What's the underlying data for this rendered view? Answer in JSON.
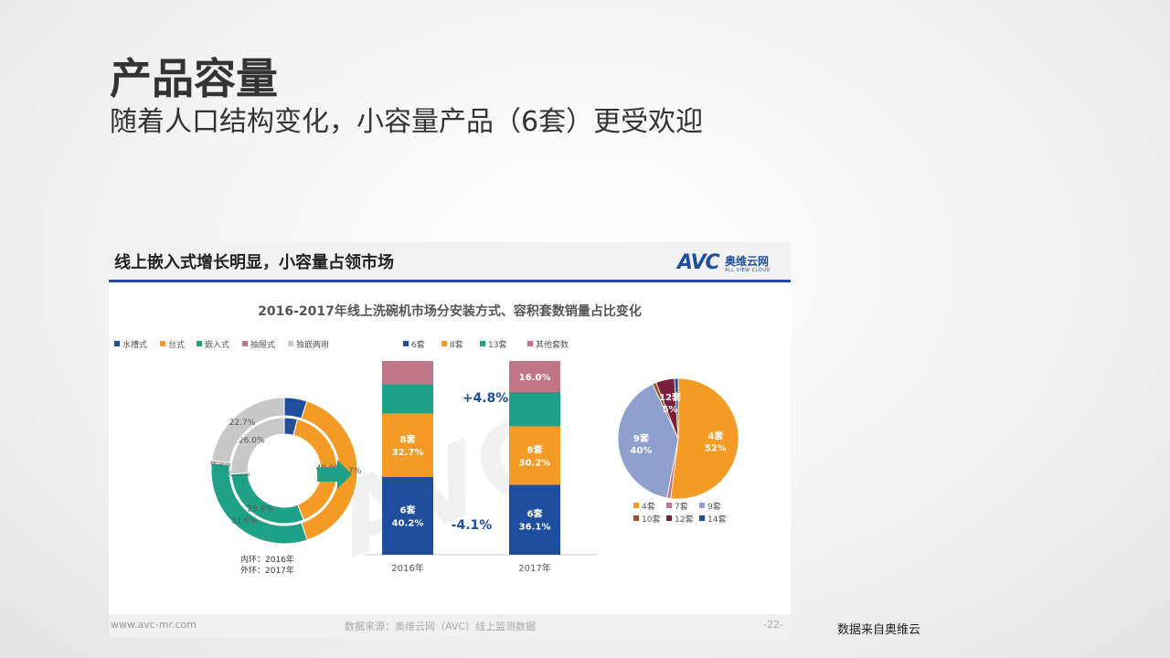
{
  "slide": {
    "title": "产品容量",
    "subtitle": "随着人口结构变化，小容量产品（6套）更受欢迎",
    "source_note": "数据来自奥维云"
  },
  "panel": {
    "heading": "线上嵌入式增长明显，小容量占领市场",
    "logo": {
      "avc": "AVC",
      "cn": "奥维云网",
      "en": "ALL VIEW CLOUD"
    },
    "footer": {
      "url": "www.avc-mr.com",
      "source": "数据来源：奥维云网（AVC）线上监测数据",
      "page": "-22-"
    }
  },
  "chart_data": {
    "title": "2016-2017年线上洗碗机市场分安装方式、容积套数销量占比变化",
    "charts": [
      {
        "type": "pie",
        "variant": "double-donut",
        "legend_position": "top-left",
        "categories": [
          "水槽式",
          "台式",
          "嵌入式",
          "抽屉式",
          "独嵌两用"
        ],
        "colors": [
          "#1f4e9e",
          "#f39b24",
          "#1fa187",
          "#c07686",
          "#c8c8c8"
        ],
        "series": [
          {
            "name": "2016年",
            "ring": "inner",
            "values": [
              4.0,
              40.0,
              29.9,
              0.0,
              26.0
            ],
            "labels": [
              "4.0%",
              "40.0%",
              "29.9%",
              "0.0%",
              "26.0%"
            ]
          },
          {
            "name": "2017年",
            "ring": "outer",
            "values": [
              5.0,
              39.7,
              31.6,
              0.5,
              22.7
            ],
            "labels": [
              "",
              "39.7%",
              "31.6%",
              "0.5%",
              "22.7%"
            ]
          }
        ],
        "ring_note": [
          "内环：2016年",
          "外环：2017年"
        ]
      },
      {
        "type": "bar",
        "variant": "stacked-100",
        "legend_position": "top",
        "categories": [
          "2016年",
          "2017年"
        ],
        "series": [
          {
            "name": "6套",
            "color": "#1f4e9e",
            "values": [
              40.2,
              36.1
            ],
            "segment_labels": [
              "6套\n40.2%",
              "6套\n36.1%"
            ]
          },
          {
            "name": "8套",
            "color": "#f39b24",
            "values": [
              32.7,
              30.2
            ],
            "segment_labels": [
              "8套\n32.7%",
              "8套\n30.2%"
            ]
          },
          {
            "name": "13套",
            "color": "#1fa187",
            "values": [
              15.1,
              17.7
            ],
            "segment_labels": [
              "",
              ""
            ]
          },
          {
            "name": "其他套数",
            "color": "#c07686",
            "values": [
              12.0,
              16.0
            ],
            "segment_labels": [
              "",
              "16.0%"
            ]
          }
        ],
        "annotations": [
          "+4.8%",
          "-4.1%"
        ],
        "ylim": [
          0,
          100
        ]
      },
      {
        "type": "pie",
        "legend_position": "bottom",
        "categories": [
          "4套",
          "7套",
          "9套",
          "10套",
          "12套",
          "14套"
        ],
        "colors": [
          "#f39b24",
          "#c07686",
          "#8fa0cf",
          "#a0522d",
          "#7b1f3a",
          "#1f4e9e"
        ],
        "values": [
          52,
          1,
          40,
          1,
          5,
          1
        ],
        "slice_labels": [
          {
            "name": "4套",
            "pct": "52%"
          },
          {
            "name": "9套",
            "pct": "40%"
          },
          {
            "name": "12套",
            "pct": "5%"
          }
        ]
      }
    ]
  }
}
